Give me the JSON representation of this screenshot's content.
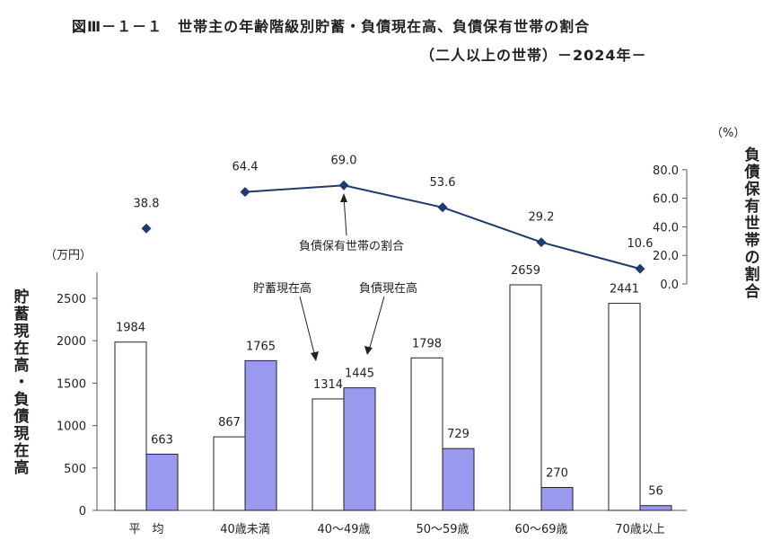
{
  "header": {
    "title": "図Ⅲ－１－１　世帯主の年齢階級別貯蓄・負債現在高、負債保有世帯の割合",
    "subtitle": "（二人以上の世帯）－2024年－"
  },
  "chart_data": {
    "type": "bar",
    "categories": [
      "平　均",
      "40歳未満",
      "40～49歳",
      "50～59歳",
      "60～69歳",
      "70歳以上"
    ],
    "series": [
      {
        "name": "貯蓄現在高",
        "values": [
          1984,
          867,
          1314,
          1798,
          2659,
          2441
        ],
        "color": "#ffffff"
      },
      {
        "name": "負債現在高",
        "values": [
          663,
          1765,
          1445,
          729,
          270,
          56
        ],
        "color": "#9999ee"
      }
    ],
    "ylabel": "貯蓄現在高・負債現在高",
    "yunit": "（万円）",
    "ylim": [
      0,
      2700
    ],
    "yticks": [
      0,
      500,
      1000,
      1500,
      2000,
      2500
    ],
    "line": {
      "name": "負債保有世帯の割合",
      "values": [
        38.8,
        64.4,
        69.0,
        53.6,
        29.2,
        10.6
      ],
      "value_labels": [
        "38.8",
        "64.4",
        "69.0",
        "53.6",
        "29.2",
        "10.6"
      ],
      "connected_from_index": 1,
      "color": "#1f3a6e",
      "ylabel": "負債保有世帯の割合",
      "yunit": "（%）",
      "ylim": [
        0,
        80
      ],
      "yticks": [
        "0.0",
        "20.0",
        "40.0",
        "60.0",
        "80.0"
      ]
    },
    "annotations": {
      "savings": "貯蓄現在高",
      "debt": "負債現在高",
      "ratio": "負債保有世帯の割合"
    }
  }
}
